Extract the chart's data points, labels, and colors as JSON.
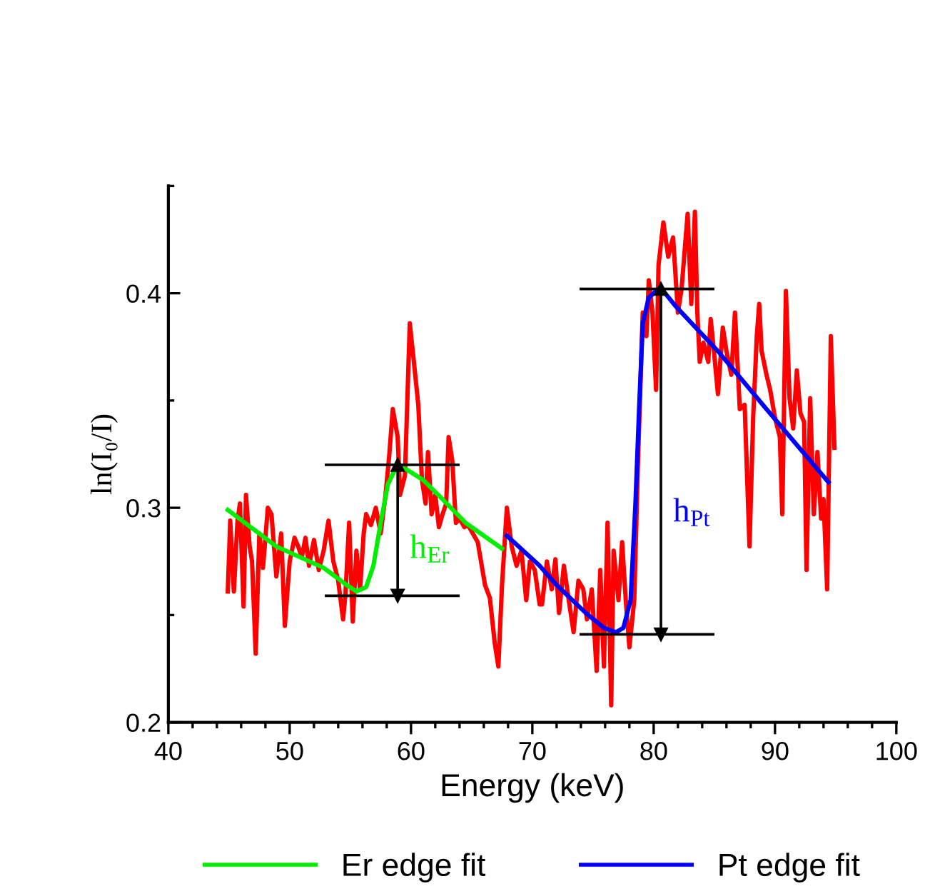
{
  "chart_data": {
    "type": "line",
    "xlabel": "Energy (keV)",
    "ylabel": "ln(I₀/I)",
    "xlim": [
      40,
      100
    ],
    "ylim": [
      0.2,
      0.45
    ],
    "xticks": [
      40,
      {
        "value": 42,
        "label": null
      },
      {
        "value": 44,
        "label": null
      },
      {
        "value": 46,
        "label": null
      },
      {
        "value": 48,
        "label": null
      },
      50,
      {
        "value": 52,
        "label": null
      },
      {
        "value": 54,
        "label": null
      },
      {
        "value": 56,
        "label": null
      },
      {
        "value": 58,
        "label": null
      },
      60,
      {
        "value": 62,
        "label": null
      },
      {
        "value": 64,
        "label": null
      },
      {
        "value": 66,
        "label": null
      },
      {
        "value": 68,
        "label": null
      },
      70,
      {
        "value": 72,
        "label": null
      },
      {
        "value": 74,
        "label": null
      },
      {
        "value": 76,
        "label": null
      },
      {
        "value": 78,
        "label": null
      },
      80,
      {
        "value": 82,
        "label": null
      },
      {
        "value": 84,
        "label": null
      },
      {
        "value": 86,
        "label": null
      },
      {
        "value": 88,
        "label": null
      },
      90,
      {
        "value": 92,
        "label": null
      },
      {
        "value": 94,
        "label": null
      },
      {
        "value": 96,
        "label": null
      },
      {
        "value": 98,
        "label": null
      },
      100
    ],
    "yticks": [
      0.2,
      {
        "value": 0.25,
        "label": null
      },
      0.3,
      {
        "value": 0.35,
        "label": null
      },
      0.4,
      {
        "value": 0.45,
        "label": null
      }
    ],
    "grid": false,
    "legend": "bottom",
    "marker": "none",
    "line_style": "solid",
    "series": [
      {
        "color": "#ff0000",
        "x": [
          44.9,
          45.1,
          45.4,
          45.7,
          45.9,
          46.2,
          46.4,
          46.7,
          46.9,
          47.2,
          47.5,
          47.8,
          48.2,
          48.5,
          48.9,
          49.3,
          49.6,
          50.0,
          50.4,
          50.7,
          51.0,
          51.3,
          51.6,
          52.0,
          52.4,
          52.8,
          53.2,
          53.6,
          54.0,
          54.4,
          54.6,
          54.9,
          55.2,
          55.5,
          55.8,
          56.1,
          56.3,
          56.7,
          57.1,
          57.5,
          57.9,
          58.2,
          58.5,
          58.9,
          59.1,
          59.5,
          59.9,
          60.2,
          60.6,
          60.9,
          61.2,
          61.4,
          61.7,
          62.0,
          62.3,
          62.6,
          62.9,
          63.1,
          63.4,
          63.7,
          64.0,
          64.4,
          64.7,
          65.1,
          65.5,
          66.1,
          66.5,
          66.9,
          67.2,
          67.5,
          67.9,
          68.3,
          68.7,
          69.1,
          69.5,
          69.8,
          70.2,
          70.6,
          70.8,
          71.2,
          71.6,
          71.9,
          72.2,
          72.6,
          73.0,
          73.4,
          73.8,
          74.2,
          74.5,
          74.9,
          75.3,
          75.6,
          75.9,
          76.2,
          76.5,
          76.7,
          77.1,
          77.4,
          77.7,
          78.0,
          78.4,
          78.7,
          79.1,
          79.4,
          79.6,
          79.9,
          80.2,
          80.4,
          80.8,
          81.2,
          81.6,
          82.0,
          82.3,
          82.8,
          83.1,
          83.4,
          83.6,
          83.8,
          84.1,
          84.5,
          84.7,
          85.0,
          85.3,
          85.7,
          86.0,
          86.4,
          86.7,
          87.1,
          87.5,
          87.9,
          88.2,
          88.5,
          88.7,
          88.9,
          89.3,
          89.6,
          90.0,
          90.4,
          90.6,
          90.9,
          91.2,
          91.5,
          91.8,
          92.1,
          92.4,
          92.6,
          92.9,
          93.2,
          93.5,
          93.8,
          94.0,
          94.3,
          94.6,
          94.9
        ],
        "values": [
          0.261,
          0.294,
          0.261,
          0.294,
          0.302,
          0.254,
          0.306,
          0.282,
          0.275,
          0.232,
          0.288,
          0.272,
          0.3,
          0.297,
          0.268,
          0.288,
          0.245,
          0.275,
          0.286,
          0.282,
          0.277,
          0.286,
          0.273,
          0.285,
          0.271,
          0.28,
          0.294,
          0.275,
          0.266,
          0.248,
          0.26,
          0.293,
          0.247,
          0.28,
          0.262,
          0.288,
          0.297,
          0.292,
          0.3,
          0.288,
          0.306,
          0.324,
          0.346,
          0.333,
          0.306,
          0.315,
          0.386,
          0.37,
          0.348,
          0.313,
          0.302,
          0.326,
          0.297,
          0.306,
          0.291,
          0.297,
          0.302,
          0.333,
          0.322,
          0.293,
          0.295,
          0.291,
          0.292,
          0.288,
          0.284,
          0.264,
          0.258,
          0.237,
          0.226,
          0.264,
          0.3,
          0.282,
          0.273,
          0.28,
          0.257,
          0.275,
          0.271,
          0.255,
          0.255,
          0.275,
          0.262,
          0.276,
          0.251,
          0.273,
          0.257,
          0.242,
          0.266,
          0.262,
          0.248,
          0.262,
          0.224,
          0.271,
          0.226,
          0.293,
          0.208,
          0.28,
          0.257,
          0.284,
          0.257,
          0.235,
          0.257,
          0.32,
          0.391,
          0.38,
          0.406,
          0.391,
          0.355,
          0.413,
          0.433,
          0.417,
          0.426,
          0.391,
          0.402,
          0.437,
          0.395,
          0.438,
          0.391,
          0.368,
          0.377,
          0.368,
          0.388,
          0.371,
          0.353,
          0.384,
          0.373,
          0.362,
          0.391,
          0.346,
          0.348,
          0.282,
          0.342,
          0.38,
          0.395,
          0.373,
          0.362,
          0.355,
          0.342,
          0.333,
          0.297,
          0.401,
          0.351,
          0.337,
          0.364,
          0.344,
          0.34,
          0.271,
          0.351,
          0.297,
          0.326,
          0.295,
          0.304,
          0.262,
          0.38,
          0.328
        ]
      },
      {
        "name": "Er edge fit",
        "color": "#00ee00",
        "x": [
          44.9,
          48.9,
          52.8,
          54.7,
          55.5,
          56.3,
          56.9,
          57.5,
          58.1,
          58.7,
          59.1,
          59.6,
          61.0,
          62.6,
          64.5,
          66.5,
          67.5
        ],
        "values": [
          0.299,
          0.282,
          0.272,
          0.264,
          0.261,
          0.263,
          0.273,
          0.293,
          0.311,
          0.318,
          0.319,
          0.318,
          0.313,
          0.304,
          0.293,
          0.285,
          0.281
        ]
      },
      {
        "name": "Pt edge fit",
        "color": "#0000ff",
        "x": [
          67.9,
          70.6,
          72.0,
          74.4,
          75.9,
          76.9,
          77.5,
          78.1,
          78.5,
          78.8,
          79.1,
          79.6,
          80.2,
          80.8,
          81.8,
          85.3,
          89.3,
          94.4
        ],
        "values": [
          0.287,
          0.273,
          0.264,
          0.251,
          0.244,
          0.242,
          0.244,
          0.257,
          0.302,
          0.346,
          0.386,
          0.398,
          0.401,
          0.401,
          0.394,
          0.373,
          0.346,
          0.312
        ]
      },
      {
        "color": "#000000",
        "x": [
          53.0,
          63.9
        ],
        "values": [
          0.32,
          0.32
        ]
      },
      {
        "color": "#000000",
        "x": [
          53.0,
          63.9
        ],
        "values": [
          0.259,
          0.259
        ]
      },
      {
        "color": "#000000",
        "marker": "triangle",
        "x": [
          58.9,
          58.9
        ],
        "values": [
          0.32,
          0.259
        ]
      },
      {
        "color": "#000000",
        "x": [
          74.0,
          84.9
        ],
        "values": [
          0.402,
          0.402
        ]
      },
      {
        "color": "#000000",
        "x": [
          74.0,
          84.9
        ],
        "values": [
          0.241,
          0.241
        ]
      },
      {
        "color": "#000000",
        "marker": "triangle",
        "x": [
          80.6,
          80.6
        ],
        "values": [
          0.402,
          0.241
        ]
      }
    ],
    "annotations": [
      "h$_{Er}$",
      "h$_{Pt}$"
    ]
  }
}
